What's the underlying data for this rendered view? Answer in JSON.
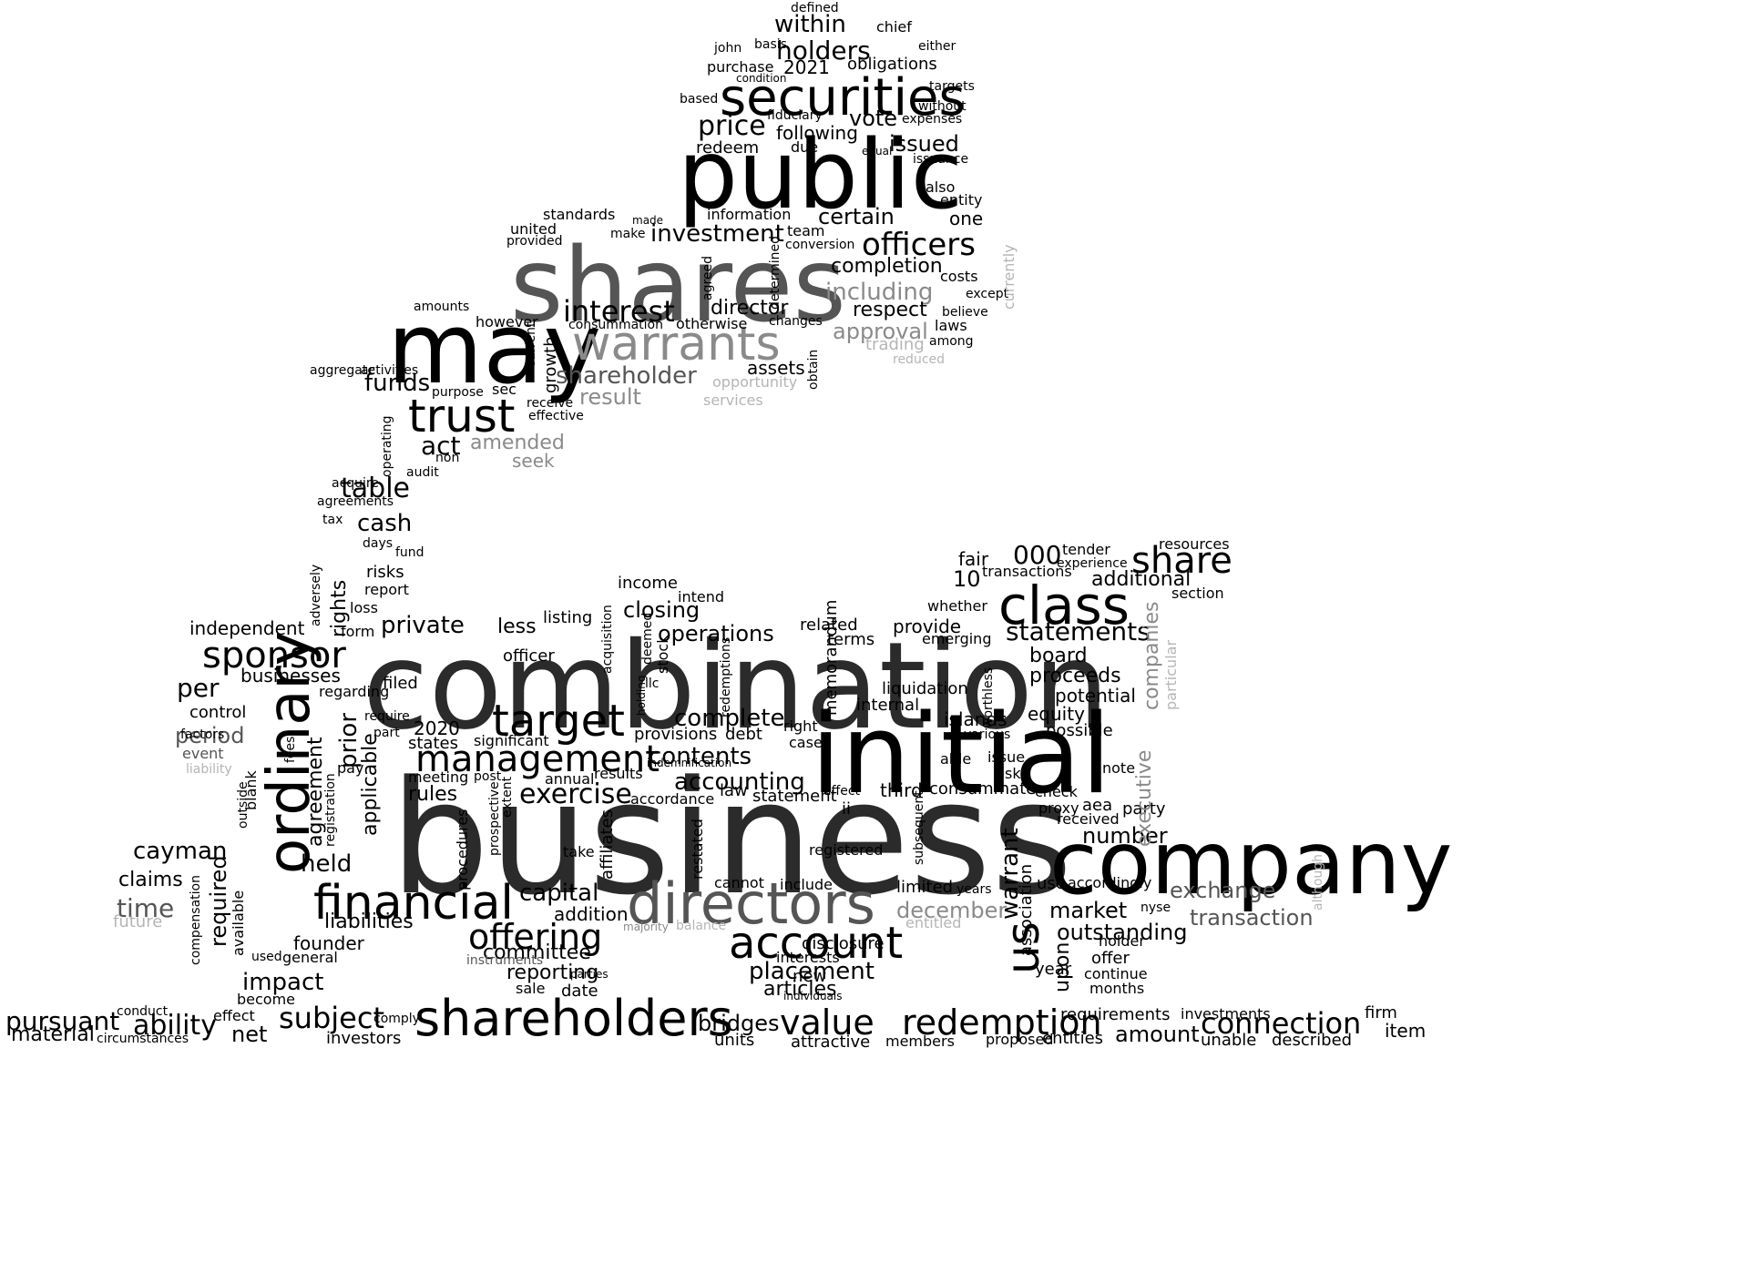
{
  "colors": {
    "background": "#ffffff",
    "black": "#000000",
    "dark": "#2b2b2b",
    "mid": "#555555",
    "gray": "#8a8a8a",
    "light": "#b5b5b5"
  },
  "words": [
    {
      "text": "business",
      "tone": "dark"
    },
    {
      "text": "combination",
      "tone": "dark"
    },
    {
      "text": "initial",
      "tone": "black"
    },
    {
      "text": "company",
      "tone": "black"
    },
    {
      "text": "shares",
      "tone": "mid"
    },
    {
      "text": "public",
      "tone": "black"
    },
    {
      "text": "may",
      "tone": "black"
    },
    {
      "text": "securities",
      "tone": "black"
    },
    {
      "text": "shareholders",
      "tone": "black"
    },
    {
      "text": "directors",
      "tone": "mid"
    },
    {
      "text": "ordinary",
      "tone": "black"
    },
    {
      "text": "class",
      "tone": "black"
    },
    {
      "text": "account",
      "tone": "black"
    },
    {
      "text": "financial",
      "tone": "black"
    },
    {
      "text": "warrants",
      "tone": "gray"
    },
    {
      "text": "trust",
      "tone": "black"
    },
    {
      "text": "target",
      "tone": "black"
    },
    {
      "text": "sponsor",
      "tone": "black"
    },
    {
      "text": "management",
      "tone": "black"
    },
    {
      "text": "offering",
      "tone": "black"
    },
    {
      "text": "value",
      "tone": "black"
    },
    {
      "text": "redemption",
      "tone": "black"
    },
    {
      "text": "connection",
      "tone": "black"
    },
    {
      "text": "share",
      "tone": "black"
    },
    {
      "text": "officers",
      "tone": "black"
    },
    {
      "text": "us",
      "tone": "black"
    },
    {
      "text": "subject",
      "tone": "black"
    },
    {
      "text": "pursuant",
      "tone": "black"
    },
    {
      "text": "ability",
      "tone": "black"
    },
    {
      "text": "cash",
      "tone": "black"
    },
    {
      "text": "table",
      "tone": "black"
    },
    {
      "text": "funds",
      "tone": "black"
    },
    {
      "text": "act",
      "tone": "black"
    },
    {
      "text": "interest",
      "tone": "black"
    },
    {
      "text": "investment",
      "tone": "black"
    },
    {
      "text": "price",
      "tone": "black"
    },
    {
      "text": "holders",
      "tone": "black"
    },
    {
      "text": "within",
      "tone": "black"
    },
    {
      "text": "2021",
      "tone": "black"
    },
    {
      "text": "obligations",
      "tone": "black"
    },
    {
      "text": "purchase",
      "tone": "black"
    },
    {
      "text": "following",
      "tone": "black"
    },
    {
      "text": "vote",
      "tone": "black"
    },
    {
      "text": "issued",
      "tone": "black"
    },
    {
      "text": "certain",
      "tone": "black"
    },
    {
      "text": "completion",
      "tone": "black"
    },
    {
      "text": "including",
      "tone": "gray"
    },
    {
      "text": "respect",
      "tone": "black"
    },
    {
      "text": "approval",
      "tone": "gray"
    },
    {
      "text": "trading",
      "tone": "light"
    },
    {
      "text": "reduced",
      "tone": "light"
    },
    {
      "text": "director",
      "tone": "black"
    },
    {
      "text": "shareholder",
      "tone": "mid"
    },
    {
      "text": "result",
      "tone": "gray"
    },
    {
      "text": "assets",
      "tone": "black"
    },
    {
      "text": "amended",
      "tone": "gray"
    },
    {
      "text": "seek",
      "tone": "gray"
    },
    {
      "text": "services",
      "tone": "light"
    },
    {
      "text": "opportunity",
      "tone": "light"
    },
    {
      "text": "private",
      "tone": "black"
    },
    {
      "text": "less",
      "tone": "black"
    },
    {
      "text": "independent",
      "tone": "black"
    },
    {
      "text": "businesses",
      "tone": "black"
    },
    {
      "text": "per",
      "tone": "black"
    },
    {
      "text": "period",
      "tone": "mid"
    },
    {
      "text": "control",
      "tone": "black"
    },
    {
      "text": "2020",
      "tone": "black"
    },
    {
      "text": "complete",
      "tone": "black"
    },
    {
      "text": "contents",
      "tone": "black"
    },
    {
      "text": "accounting",
      "tone": "black"
    },
    {
      "text": "operations",
      "tone": "black"
    },
    {
      "text": "closing",
      "tone": "black"
    },
    {
      "text": "exercise",
      "tone": "black"
    },
    {
      "text": "statements",
      "tone": "black"
    },
    {
      "text": "board",
      "tone": "black"
    },
    {
      "text": "proceeds",
      "tone": "black"
    },
    {
      "text": "potential",
      "tone": "black"
    },
    {
      "text": "equity",
      "tone": "black"
    },
    {
      "text": "islands",
      "tone": "black"
    },
    {
      "text": "additional",
      "tone": "black"
    },
    {
      "text": "fair",
      "tone": "black"
    },
    {
      "text": "000",
      "tone": "black"
    },
    {
      "text": "10",
      "tone": "black"
    },
    {
      "text": "cayman",
      "tone": "black"
    },
    {
      "text": "claims",
      "tone": "black"
    },
    {
      "text": "time",
      "tone": "mid"
    },
    {
      "text": "held",
      "tone": "black"
    },
    {
      "text": "liabilities",
      "tone": "black"
    },
    {
      "text": "founder",
      "tone": "black"
    },
    {
      "text": "impact",
      "tone": "black"
    },
    {
      "text": "committee",
      "tone": "black"
    },
    {
      "text": "reporting",
      "tone": "black"
    },
    {
      "text": "placement",
      "tone": "black"
    },
    {
      "text": "articles",
      "tone": "black"
    },
    {
      "text": "market",
      "tone": "black"
    },
    {
      "text": "outstanding",
      "tone": "black"
    },
    {
      "text": "number",
      "tone": "black"
    },
    {
      "text": "exchange",
      "tone": "mid"
    },
    {
      "text": "transaction",
      "tone": "mid"
    },
    {
      "text": "december",
      "tone": "gray"
    },
    {
      "text": "capital",
      "tone": "black"
    },
    {
      "text": "addition",
      "tone": "black"
    },
    {
      "text": "bridges",
      "tone": "black"
    },
    {
      "text": "investors",
      "tone": "black"
    },
    {
      "text": "net",
      "tone": "black"
    },
    {
      "text": "material",
      "tone": "black"
    },
    {
      "text": "amount",
      "tone": "black"
    },
    {
      "text": "requirements",
      "tone": "black"
    },
    {
      "text": "entities",
      "tone": "black"
    },
    {
      "text": "units",
      "tone": "black"
    },
    {
      "text": "attractive",
      "tone": "black"
    },
    {
      "text": "members",
      "tone": "black"
    },
    {
      "text": "proposed",
      "tone": "black"
    },
    {
      "text": "described",
      "tone": "black"
    },
    {
      "text": "item",
      "tone": "black"
    },
    {
      "text": "firm",
      "tone": "black"
    },
    {
      "text": "investments",
      "tone": "black"
    },
    {
      "text": "unable",
      "tone": "black"
    },
    {
      "text": "effect",
      "tone": "black"
    },
    {
      "text": "circumstances",
      "tone": "black"
    },
    {
      "text": "resources",
      "tone": "black"
    },
    {
      "text": "section",
      "tone": "black"
    },
    {
      "text": "transactions",
      "tone": "black"
    },
    {
      "text": "tender",
      "tone": "black"
    },
    {
      "text": "experience",
      "tone": "black"
    },
    {
      "text": "provide",
      "tone": "black"
    },
    {
      "text": "related",
      "tone": "black"
    },
    {
      "text": "terms",
      "tone": "black"
    },
    {
      "text": "liquidation",
      "tone": "black"
    },
    {
      "text": "internal",
      "tone": "black"
    },
    {
      "text": "possible",
      "tone": "black"
    },
    {
      "text": "income",
      "tone": "black"
    },
    {
      "text": "intend",
      "tone": "black"
    },
    {
      "text": "listing",
      "tone": "black"
    },
    {
      "text": "officer",
      "tone": "black"
    },
    {
      "text": "filed",
      "tone": "black"
    },
    {
      "text": "states",
      "tone": "black"
    },
    {
      "text": "significant",
      "tone": "black"
    },
    {
      "text": "meeting",
      "tone": "black"
    },
    {
      "text": "rules",
      "tone": "black"
    },
    {
      "text": "annual",
      "tone": "black"
    },
    {
      "text": "results",
      "tone": "black"
    },
    {
      "text": "accordance",
      "tone": "black"
    },
    {
      "text": "law",
      "tone": "black"
    },
    {
      "text": "statement",
      "tone": "black"
    },
    {
      "text": "third",
      "tone": "black"
    },
    {
      "text": "consummate",
      "tone": "black"
    },
    {
      "text": "registered",
      "tone": "black"
    },
    {
      "text": "limited",
      "tone": "black"
    },
    {
      "text": "disclosure",
      "tone": "black"
    },
    {
      "text": "interests",
      "tone": "black"
    },
    {
      "text": "individuals",
      "tone": "black"
    },
    {
      "text": "new",
      "tone": "black"
    },
    {
      "text": "include",
      "tone": "black"
    },
    {
      "text": "cannot",
      "tone": "black"
    },
    {
      "text": "provisions",
      "tone": "black"
    },
    {
      "text": "debt",
      "tone": "black"
    },
    {
      "text": "year",
      "tone": "black"
    },
    {
      "text": "use",
      "tone": "black"
    },
    {
      "text": "accordingly",
      "tone": "black"
    },
    {
      "text": "offer",
      "tone": "black"
    },
    {
      "text": "holder",
      "tone": "black"
    },
    {
      "text": "continue",
      "tone": "black"
    },
    {
      "text": "months",
      "tone": "black"
    },
    {
      "text": "received",
      "tone": "black"
    },
    {
      "text": "aea",
      "tone": "black"
    },
    {
      "text": "party",
      "tone": "black"
    },
    {
      "text": "check",
      "tone": "black"
    },
    {
      "text": "proxy",
      "tone": "black"
    },
    {
      "text": "issue",
      "tone": "black"
    },
    {
      "text": "risk",
      "tone": "black"
    },
    {
      "text": "note",
      "tone": "black"
    },
    {
      "text": "able",
      "tone": "black"
    },
    {
      "text": "whether",
      "tone": "black"
    },
    {
      "text": "emerging",
      "tone": "black"
    },
    {
      "text": "information",
      "tone": "black"
    },
    {
      "text": "team",
      "tone": "black"
    },
    {
      "text": "conversion",
      "tone": "black"
    },
    {
      "text": "one",
      "tone": "black"
    },
    {
      "text": "also",
      "tone": "black"
    },
    {
      "text": "entity",
      "tone": "black"
    },
    {
      "text": "costs",
      "tone": "black"
    },
    {
      "text": "except",
      "tone": "black"
    },
    {
      "text": "believe",
      "tone": "black"
    },
    {
      "text": "laws",
      "tone": "black"
    },
    {
      "text": "among",
      "tone": "black"
    },
    {
      "text": "changes",
      "tone": "black"
    },
    {
      "text": "otherwise",
      "tone": "black"
    },
    {
      "text": "consummation",
      "tone": "black"
    },
    {
      "text": "however",
      "tone": "black"
    },
    {
      "text": "amounts",
      "tone": "black"
    },
    {
      "text": "activities",
      "tone": "black"
    },
    {
      "text": "purpose",
      "tone": "black"
    },
    {
      "text": "sec",
      "tone": "black"
    },
    {
      "text": "receive",
      "tone": "black"
    },
    {
      "text": "effective",
      "tone": "black"
    },
    {
      "text": "standards",
      "tone": "black"
    },
    {
      "text": "united",
      "tone": "black"
    },
    {
      "text": "provided",
      "tone": "black"
    },
    {
      "text": "make",
      "tone": "black"
    },
    {
      "text": "made",
      "tone": "black"
    },
    {
      "text": "due",
      "tone": "black"
    },
    {
      "text": "redeem",
      "tone": "black"
    },
    {
      "text": "basis",
      "tone": "black"
    },
    {
      "text": "john",
      "tone": "black"
    },
    {
      "text": "condition",
      "tone": "black"
    },
    {
      "text": "fiduciary",
      "tone": "black"
    },
    {
      "text": "defined",
      "tone": "black"
    },
    {
      "text": "chief",
      "tone": "black"
    },
    {
      "text": "either",
      "tone": "black"
    },
    {
      "text": "targets",
      "tone": "black"
    },
    {
      "text": "expenses",
      "tone": "black"
    },
    {
      "text": "issuance",
      "tone": "black"
    },
    {
      "text": "without",
      "tone": "black"
    },
    {
      "text": "equal",
      "tone": "black"
    },
    {
      "text": "based",
      "tone": "black"
    },
    {
      "text": "acquire",
      "tone": "black"
    },
    {
      "text": "agreements",
      "tone": "black"
    },
    {
      "text": "audit",
      "tone": "black"
    },
    {
      "text": "non",
      "tone": "black"
    },
    {
      "text": "tax",
      "tone": "black"
    },
    {
      "text": "days",
      "tone": "black"
    },
    {
      "text": "fund",
      "tone": "black"
    },
    {
      "text": "risks",
      "tone": "black"
    },
    {
      "text": "report",
      "tone": "black"
    },
    {
      "text": "loss",
      "tone": "black"
    },
    {
      "text": "form",
      "tone": "black"
    },
    {
      "text": "regarding",
      "tone": "black"
    },
    {
      "text": "require",
      "tone": "black"
    },
    {
      "text": "part",
      "tone": "black"
    },
    {
      "text": "aggregate",
      "tone": "black"
    },
    {
      "text": "pay",
      "tone": "black"
    },
    {
      "text": "event",
      "tone": "mid"
    },
    {
      "text": "factors",
      "tone": "black"
    },
    {
      "text": "liability",
      "tone": "light"
    },
    {
      "text": "future",
      "tone": "light"
    },
    {
      "text": "general",
      "tone": "black"
    },
    {
      "text": "used",
      "tone": "black"
    },
    {
      "text": "become",
      "tone": "black"
    },
    {
      "text": "conduct",
      "tone": "black"
    },
    {
      "text": "comply",
      "tone": "black"
    },
    {
      "text": "sale",
      "tone": "black"
    },
    {
      "text": "date",
      "tone": "black"
    },
    {
      "text": "take",
      "tone": "black"
    },
    {
      "text": "post",
      "tone": "black"
    },
    {
      "text": "instruments",
      "tone": "mid"
    },
    {
      "text": "parties",
      "tone": "black"
    },
    {
      "text": "balance",
      "tone": "light"
    },
    {
      "text": "majority",
      "tone": "gray"
    },
    {
      "text": "entitled",
      "tone": "light"
    },
    {
      "text": "years",
      "tone": "black"
    },
    {
      "text": "nyse",
      "tone": "black"
    },
    {
      "text": "right",
      "tone": "black"
    },
    {
      "text": "case",
      "tone": "black"
    },
    {
      "text": "ii",
      "tone": "black"
    },
    {
      "text": "affect",
      "tone": "black"
    },
    {
      "text": "llc",
      "tone": "black"
    },
    {
      "text": "holding",
      "tone": "black"
    },
    {
      "text": "stock",
      "tone": "black"
    },
    {
      "text": "deemed",
      "tone": "black"
    },
    {
      "text": "redemptions",
      "tone": "black"
    },
    {
      "text": "indemnification",
      "tone": "black"
    },
    {
      "text": "various",
      "tone": "black"
    },
    {
      "text": "worthless",
      "tone": "black"
    },
    {
      "text": "subsequent",
      "tone": "black"
    },
    {
      "text": "memorandum",
      "tone": "black"
    },
    {
      "text": "restated",
      "tone": "black"
    },
    {
      "text": "affiliates",
      "tone": "black"
    },
    {
      "text": "acquisition",
      "tone": "black"
    },
    {
      "text": "procedures",
      "tone": "black"
    },
    {
      "text": "prospective",
      "tone": "black"
    },
    {
      "text": "extent",
      "tone": "black"
    },
    {
      "text": "applicable",
      "tone": "black"
    },
    {
      "text": "prior",
      "tone": "black"
    },
    {
      "text": "agreement",
      "tone": "black"
    },
    {
      "text": "registration",
      "tone": "black"
    },
    {
      "text": "required",
      "tone": "black"
    },
    {
      "text": "available",
      "tone": "black"
    },
    {
      "text": "compensation",
      "tone": "black"
    },
    {
      "text": "rights",
      "tone": "black"
    },
    {
      "text": "adversely",
      "tone": "black"
    },
    {
      "text": "blank",
      "tone": "black"
    },
    {
      "text": "outside",
      "tone": "black"
    },
    {
      "text": "fees",
      "tone": "black"
    },
    {
      "text": "growth",
      "tone": "black"
    },
    {
      "text": "current",
      "tone": "black"
    },
    {
      "text": "operating",
      "tone": "black"
    },
    {
      "text": "warrant",
      "tone": "black"
    },
    {
      "text": "association",
      "tone": "black"
    },
    {
      "text": "upon",
      "tone": "black"
    },
    {
      "text": "executive",
      "tone": "gray"
    },
    {
      "text": "companies",
      "tone": "gray"
    },
    {
      "text": "particular",
      "tone": "light"
    },
    {
      "text": "currently",
      "tone": "light"
    },
    {
      "text": "obtain",
      "tone": "black"
    },
    {
      "text": "determined",
      "tone": "black"
    },
    {
      "text": "agreed",
      "tone": "black"
    },
    {
      "text": "although",
      "tone": "light"
    }
  ]
}
